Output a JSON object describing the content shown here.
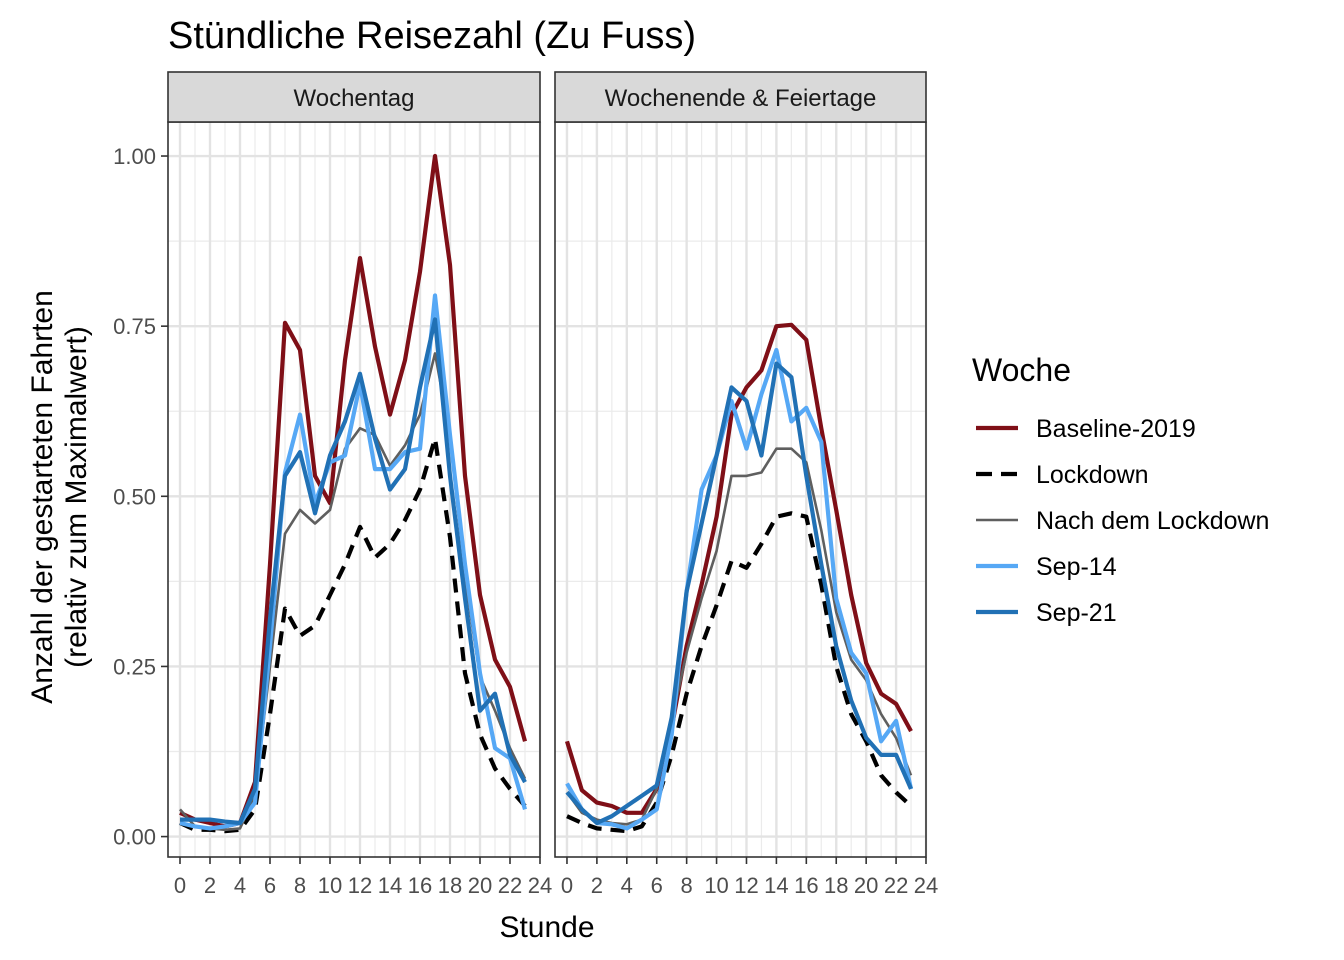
{
  "chart_data": {
    "type": "line",
    "title": "Stündliche Reisezahl (Zu Fuss)",
    "xlabel": "Stunde",
    "ylabel": [
      "Anzahl der gestarteten Fahrten",
      "(relativ zum Maximalwert)"
    ],
    "xlim": [
      -0.8,
      24.0
    ],
    "ylim": [
      -0.03,
      1.05
    ],
    "x_ticks": [
      "0",
      "2",
      "4",
      "6",
      "8",
      "10",
      "12",
      "14",
      "16",
      "18",
      "20",
      "22",
      "24"
    ],
    "y_ticks": [
      "0.00",
      "0.25",
      "0.50",
      "0.75",
      "1.00"
    ],
    "grid": true,
    "legend": {
      "title": "Woche",
      "position": "right",
      "entries": [
        "Baseline-2019",
        "Lockdown",
        "Nach dem Lockdown",
        "Sep-14",
        "Sep-21"
      ]
    },
    "series_styles": {
      "Baseline-2019": {
        "color": "#7f0f17",
        "dash": "solid"
      },
      "Lockdown": {
        "color": "#000000",
        "dash": "dashed"
      },
      "Nach dem Lockdown": {
        "color": "#5f5f5f",
        "dash": "solid"
      },
      "Sep-14": {
        "color": "#56a8f5",
        "dash": "solid"
      },
      "Sep-21": {
        "color": "#2171b5",
        "dash": "solid"
      }
    },
    "x": [
      0,
      1,
      2,
      3,
      4,
      5,
      6,
      7,
      8,
      9,
      10,
      11,
      12,
      13,
      14,
      15,
      16,
      17,
      18,
      19,
      20,
      21,
      22,
      23
    ],
    "facets": [
      {
        "label": "Wochentag",
        "series": [
          {
            "name": "Baseline-2019",
            "values": [
              0.035,
              0.025,
              0.02,
              0.015,
              0.02,
              0.08,
              0.4,
              0.755,
              0.715,
              0.53,
              0.49,
              0.7,
              0.85,
              0.72,
              0.62,
              0.7,
              0.83,
              1.0,
              0.84,
              0.53,
              0.355,
              0.26,
              0.22,
              0.14
            ]
          },
          {
            "name": "Lockdown",
            "values": [
              0.02,
              0.01,
              0.01,
              0.008,
              0.01,
              0.04,
              0.18,
              0.335,
              0.295,
              0.31,
              0.355,
              0.4,
              0.455,
              0.41,
              0.43,
              0.465,
              0.51,
              0.585,
              0.44,
              0.24,
              0.15,
              0.1,
              0.07,
              0.045
            ]
          },
          {
            "name": "Nach dem Lockdown",
            "values": [
              0.04,
              0.015,
              0.012,
              0.01,
              0.012,
              0.06,
              0.25,
              0.445,
              0.48,
              0.46,
              0.48,
              0.57,
              0.6,
              0.59,
              0.545,
              0.575,
              0.62,
              0.71,
              0.59,
              0.38,
              0.235,
              0.185,
              0.13,
              0.085
            ]
          },
          {
            "name": "Sep-14",
            "values": [
              0.02,
              0.015,
              0.012,
              0.015,
              0.02,
              0.05,
              0.28,
              0.535,
              0.62,
              0.49,
              0.55,
              0.56,
              0.665,
              0.54,
              0.54,
              0.565,
              0.57,
              0.795,
              0.59,
              0.4,
              0.24,
              0.13,
              0.115,
              0.04
            ]
          },
          {
            "name": "Sep-21",
            "values": [
              0.025,
              0.025,
              0.025,
              0.022,
              0.02,
              0.07,
              0.32,
              0.53,
              0.565,
              0.475,
              0.56,
              0.61,
              0.68,
              0.585,
              0.51,
              0.54,
              0.66,
              0.76,
              0.53,
              0.35,
              0.185,
              0.21,
              0.12,
              0.08
            ]
          }
        ]
      },
      {
        "label": "Wochenende & Feiertage",
        "series": [
          {
            "name": "Baseline-2019",
            "values": [
              0.14,
              0.068,
              0.05,
              0.045,
              0.035,
              0.035,
              0.07,
              0.16,
              0.28,
              0.37,
              0.47,
              0.62,
              0.66,
              0.685,
              0.75,
              0.752,
              0.73,
              0.6,
              0.48,
              0.355,
              0.255,
              0.21,
              0.195,
              0.155
            ]
          },
          {
            "name": "Lockdown",
            "values": [
              0.03,
              0.02,
              0.012,
              0.01,
              0.008,
              0.015,
              0.05,
              0.12,
              0.21,
              0.28,
              0.34,
              0.405,
              0.395,
              0.43,
              0.47,
              0.475,
              0.47,
              0.37,
              0.25,
              0.18,
              0.14,
              0.09,
              0.065,
              0.045
            ]
          },
          {
            "name": "Nach dem Lockdown",
            "values": [
              0.065,
              0.035,
              0.025,
              0.02,
              0.018,
              0.025,
              0.07,
              0.17,
              0.27,
              0.35,
              0.42,
              0.53,
              0.53,
              0.535,
              0.57,
              0.57,
              0.55,
              0.45,
              0.33,
              0.26,
              0.23,
              0.18,
              0.145,
              0.09
            ]
          },
          {
            "name": "Sep-14",
            "values": [
              0.078,
              0.04,
              0.02,
              0.018,
              0.012,
              0.025,
              0.04,
              0.15,
              0.36,
              0.51,
              0.56,
              0.64,
              0.57,
              0.65,
              0.715,
              0.61,
              0.63,
              0.58,
              0.35,
              0.27,
              0.24,
              0.14,
              0.17,
              0.07
            ]
          },
          {
            "name": "Sep-21",
            "values": [
              0.065,
              0.04,
              0.02,
              0.03,
              0.045,
              0.06,
              0.075,
              0.175,
              0.36,
              0.46,
              0.56,
              0.66,
              0.64,
              0.56,
              0.695,
              0.675,
              0.53,
              0.4,
              0.28,
              0.2,
              0.145,
              0.12,
              0.12,
              0.07
            ]
          }
        ]
      }
    ]
  }
}
